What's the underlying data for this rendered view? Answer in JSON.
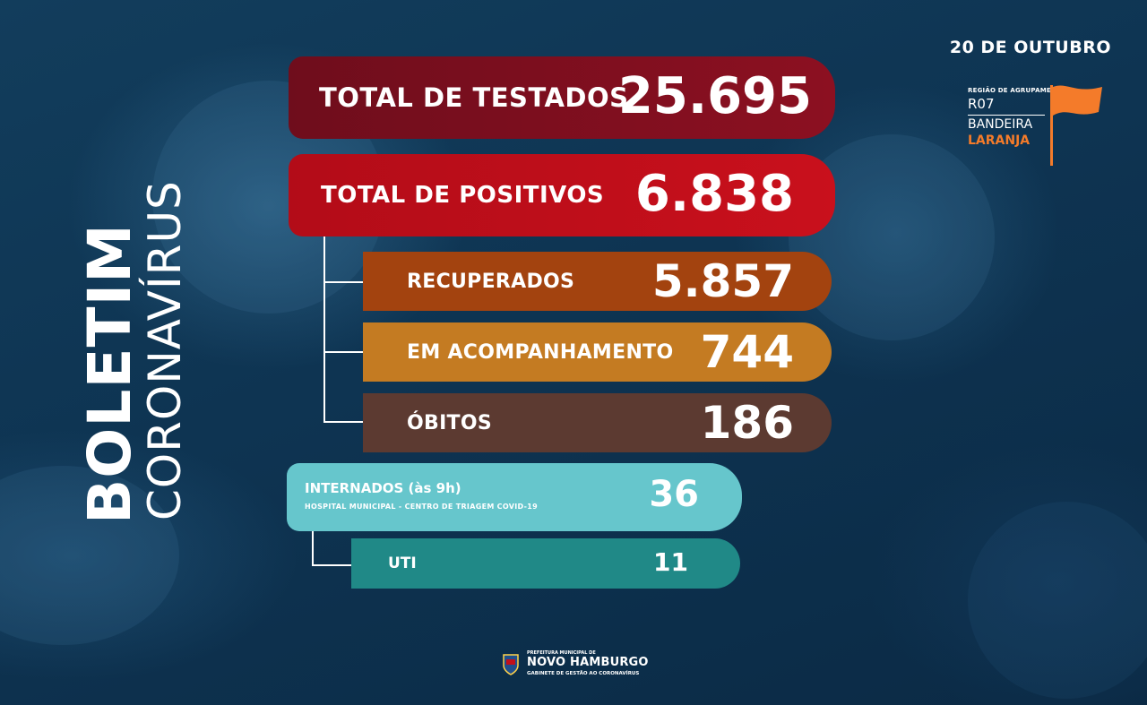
{
  "header": {
    "date": "20 DE OUTUBRO",
    "region_label": "REGIÃO DE AGRUPAMENTO",
    "region_code": "R07",
    "flag_word": "BANDEIRA",
    "flag_color_name": "LARANJA",
    "flag_color": "#f47b2a"
  },
  "title": {
    "main": "BOLETIM",
    "sub": "CORONAVÍRUS"
  },
  "stats": {
    "testados": {
      "label": "TOTAL DE TESTADOS",
      "value": "25.695",
      "color": "#7d0f1f"
    },
    "positivos": {
      "label": "TOTAL DE POSITIVOS",
      "value": "6.838",
      "color": "#c20f1b"
    },
    "recuperados": {
      "label": "RECUPERADOS",
      "value": "5.857",
      "color": "#a3430f"
    },
    "acompanhamento": {
      "label": "EM ACOMPANHAMENTO",
      "value": "744",
      "color": "#c47b22"
    },
    "obitos": {
      "label": "ÓBITOS",
      "value": "186",
      "color": "#5c3a31"
    }
  },
  "hospital": {
    "internados_label": "INTERNADOS (às 9h)",
    "internados_sub": "HOSPITAL MUNICIPAL - CENTRO DE TRIAGEM COVID-19",
    "internados_value": "36",
    "uti_label": "UTI",
    "uti_value": "11"
  },
  "footer": {
    "line1": "PREFEITURA MUNICIPAL DE",
    "line2": "NOVO HAMBURGO",
    "line3": "GABINETE DE GESTÃO AO CORONAVÍRUS"
  }
}
